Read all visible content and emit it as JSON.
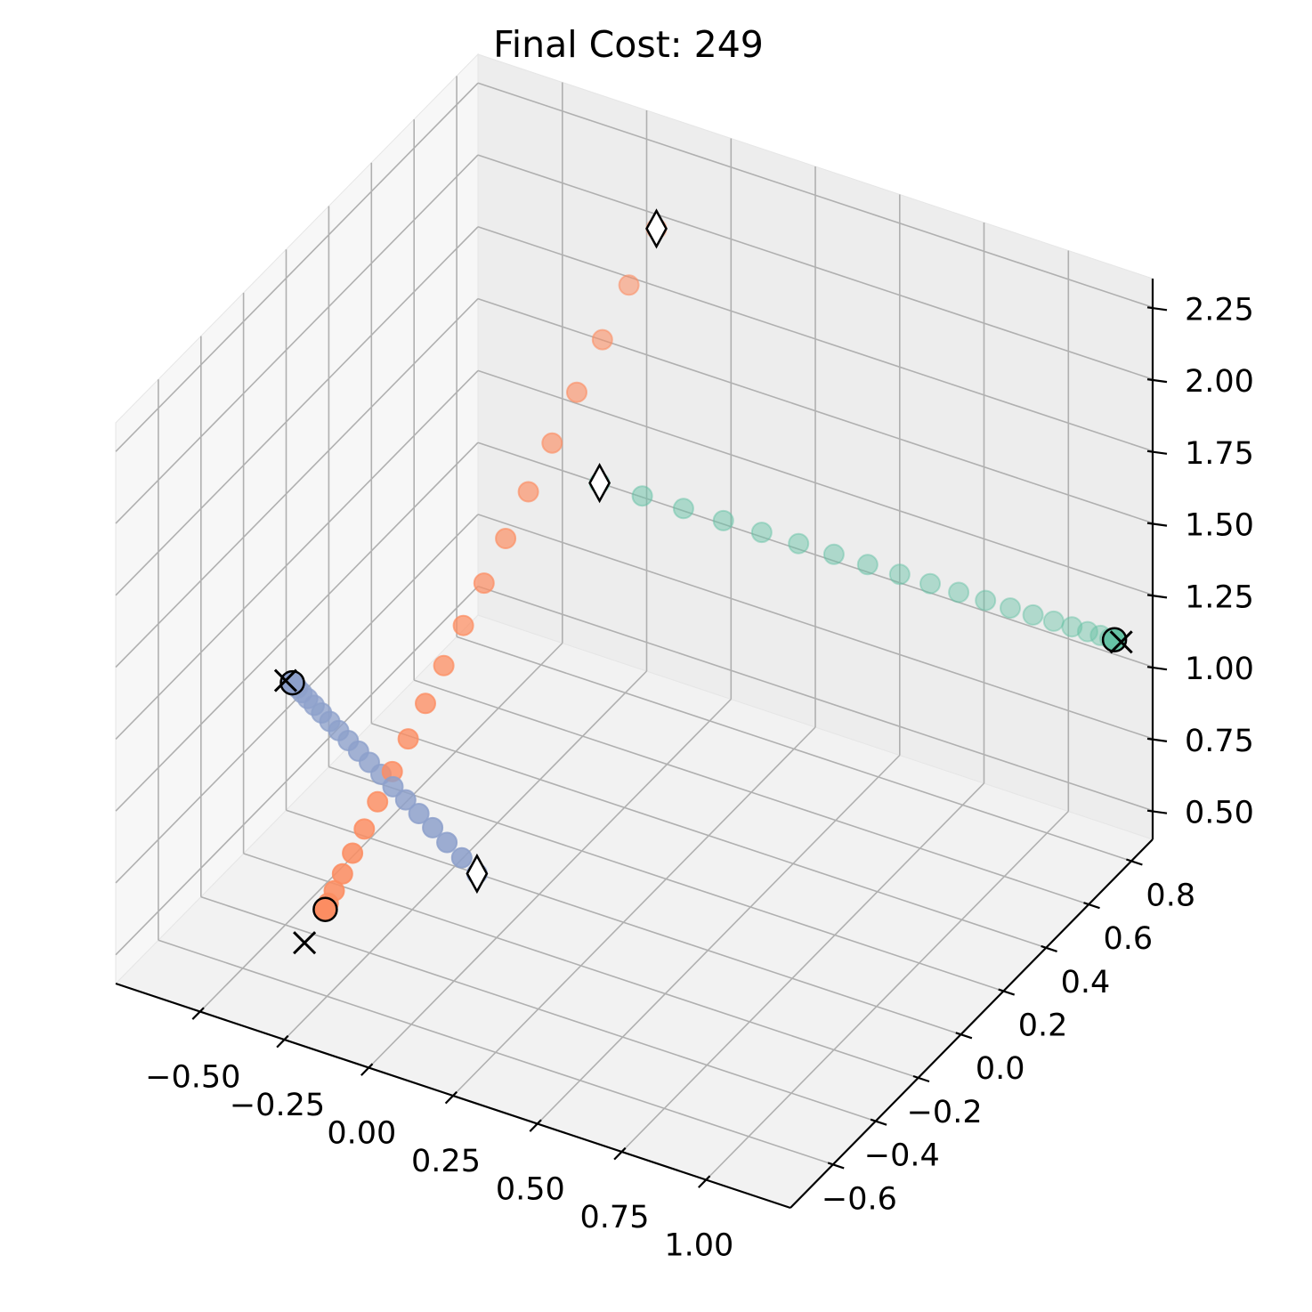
{
  "chart_data": {
    "type": "scatter3d",
    "title": "Final Cost: 249",
    "xlabel": "",
    "ylabel": "",
    "zlabel": "",
    "xlim": [
      -0.75,
      1.25
    ],
    "ylim": [
      -0.8,
      0.9
    ],
    "zlim": [
      0.4,
      2.35
    ],
    "grid": true,
    "x_ticks": [
      "−0.50",
      "−0.25",
      "0.00",
      "0.25",
      "0.50",
      "0.75",
      "1.00"
    ],
    "y_ticks": [
      "−0.6",
      "−0.4",
      "−0.2",
      "0.0",
      "0.2",
      "0.4",
      "0.6",
      "0.8"
    ],
    "z_ticks": [
      "0.50",
      "0.75",
      "1.00",
      "1.25",
      "1.50",
      "1.75",
      "2.00",
      "2.25"
    ],
    "series": [
      {
        "color": "#66c2a5",
        "start": {
          "x": -0.2,
          "y": 0.6,
          "z": 1.3
        },
        "end": {
          "x": 1.2,
          "y": 0.8,
          "z": 1.15
        },
        "target": {
          "x": 1.22,
          "y": 0.8,
          "z": 1.15
        }
      },
      {
        "color": "#fc8d62",
        "start": {
          "x": 0.0,
          "y": 0.55,
          "z": 2.3
        },
        "end": {
          "x": -0.35,
          "y": -0.45,
          "z": 0.55
        },
        "target": {
          "x": -0.38,
          "y": -0.5,
          "z": 0.46
        }
      },
      {
        "color": "#8da0cb",
        "start": {
          "x": 0.1,
          "y": -0.45,
          "z": 0.85
        },
        "end": {
          "x": -0.7,
          "y": -0.05,
          "z": 0.9
        },
        "target": {
          "x": -0.72,
          "y": -0.05,
          "z": 0.9
        }
      }
    ]
  }
}
